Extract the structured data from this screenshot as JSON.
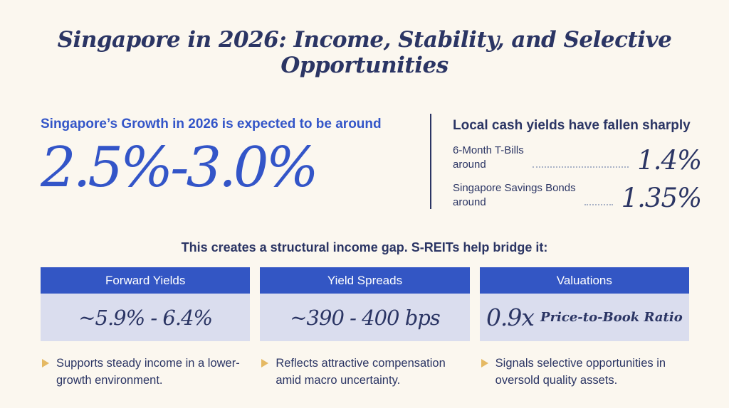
{
  "page": {
    "title": "Singapore in 2026: Income, Stability, and Selective Opportunities"
  },
  "growth": {
    "heading": "Singapore’s Growth in 2026 is expected to be around",
    "range": "2.5%-3.0%"
  },
  "cash_yields": {
    "heading": "Local cash yields have fallen sharply",
    "rows": [
      {
        "label": "6-Month T-Bills",
        "sublabel": "around",
        "value": "1.4%"
      },
      {
        "label": "Singapore Savings Bonds",
        "sublabel": "around",
        "value": "1.35%"
      }
    ]
  },
  "bridge_statement": "This creates a structural income gap. S-REITs help bridge it:",
  "cards": [
    {
      "title": "Forward Yields",
      "value": "~5.9% - 6.4%",
      "note": "Supports steady income in a lower-growth environment."
    },
    {
      "title": "Yield Spreads",
      "value": "~390 - 400 bps",
      "note": "Reflects attractive compensation amid macro uncertainty."
    },
    {
      "title": "Valuations",
      "value": "0.9x",
      "value_suffix": "Price-to-Book Ratio",
      "note": "Signals selective opportunities in oversold quality assets."
    }
  ],
  "colors": {
    "background": "#FBF7EF",
    "navy_text": "#2B3564",
    "accent_blue": "#3355C8",
    "card_header_blue": "#3356C4",
    "card_body_lavender": "#DADDEE",
    "bullet_gold": "#E5B963",
    "dotted_leader": "#A9B2C6"
  }
}
